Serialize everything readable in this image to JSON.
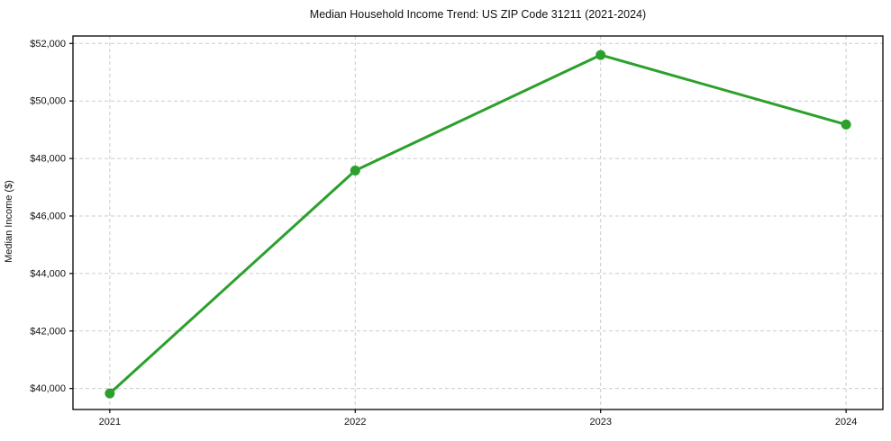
{
  "chart_data": {
    "type": "line",
    "title": "Median Household Income Trend: US ZIP Code 31211 (2021-2024)",
    "xlabel": "",
    "ylabel": "Median Income ($)",
    "x": [
      2021,
      2022,
      2023,
      2024
    ],
    "series": [
      {
        "name": "Median Household Income",
        "values": [
          39830,
          47580,
          51600,
          49180
        ]
      }
    ],
    "x_ticks": [
      {
        "value": 2021,
        "label": "2021"
      },
      {
        "value": 2022,
        "label": "2022"
      },
      {
        "value": 2023,
        "label": "2023"
      },
      {
        "value": 2024,
        "label": "2024"
      }
    ],
    "y_ticks": [
      {
        "value": 40000,
        "label": "$40,000"
      },
      {
        "value": 42000,
        "label": "$42,000"
      },
      {
        "value": 44000,
        "label": "$44,000"
      },
      {
        "value": 46000,
        "label": "$46,000"
      },
      {
        "value": 48000,
        "label": "$48,000"
      },
      {
        "value": 50000,
        "label": "$50,000"
      },
      {
        "value": 52000,
        "label": "$52,000"
      }
    ],
    "xlim": [
      2020.85,
      2024.15
    ],
    "ylim": [
      39270,
      52260
    ],
    "grid": true,
    "legend": "none",
    "colors": {
      "line": "#2ca02c",
      "marker": "#2ca02c",
      "grid": "#cccccc",
      "frame": "#000000",
      "text": "#111111",
      "background": "#ffffff"
    }
  }
}
